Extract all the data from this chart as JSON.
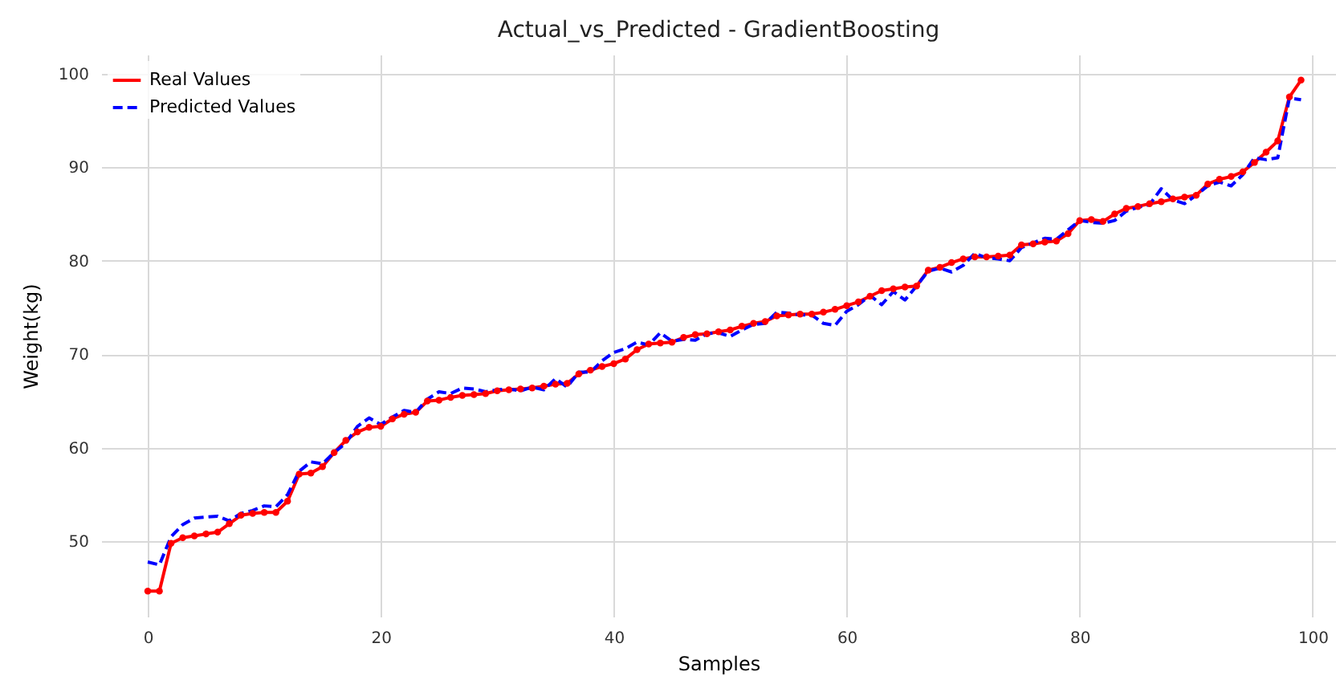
{
  "chart_data": {
    "type": "line",
    "title": "Actual_vs_Predicted - GradientBoosting",
    "xlabel": "Samples",
    "ylabel": "Weight(kg)",
    "x": [
      0,
      1,
      2,
      3,
      4,
      5,
      6,
      7,
      8,
      9,
      10,
      11,
      12,
      13,
      14,
      15,
      16,
      17,
      18,
      19,
      20,
      21,
      22,
      23,
      24,
      25,
      26,
      27,
      28,
      29,
      30,
      31,
      32,
      33,
      34,
      35,
      36,
      37,
      38,
      39,
      40,
      41,
      42,
      43,
      44,
      45,
      46,
      47,
      48,
      49,
      50,
      51,
      52,
      53,
      54,
      55,
      56,
      57,
      58,
      59,
      60,
      61,
      62,
      63,
      64,
      65,
      66,
      67,
      68,
      69,
      70,
      71,
      72,
      73,
      74,
      75,
      76,
      77,
      78,
      79,
      80,
      81,
      82,
      83,
      84,
      85,
      86,
      87,
      88,
      89,
      90,
      91,
      92,
      93,
      94,
      95,
      96,
      97,
      98,
      99
    ],
    "series": [
      {
        "name": "Real Values",
        "color": "#ff0000",
        "marker": "circle",
        "line_style": "solid",
        "values": [
          44.7,
          44.7,
          49.8,
          50.4,
          50.6,
          50.8,
          51,
          51.9,
          52.8,
          53,
          53.1,
          53.1,
          54.3,
          57.2,
          57.3,
          58,
          59.5,
          60.8,
          61.7,
          62.2,
          62.3,
          63.1,
          63.6,
          63.8,
          65,
          65.1,
          65.4,
          65.6,
          65.7,
          65.8,
          66.1,
          66.2,
          66.3,
          66.4,
          66.6,
          66.8,
          66.9,
          67.9,
          68.3,
          68.7,
          69,
          69.5,
          70.5,
          71.1,
          71.2,
          71.3,
          71.8,
          72.1,
          72.2,
          72.4,
          72.6,
          73,
          73.3,
          73.5,
          74.1,
          74.2,
          74.3,
          74.3,
          74.5,
          74.8,
          75.2,
          75.6,
          76.2,
          76.8,
          77,
          77.2,
          77.3,
          79,
          79.3,
          79.8,
          80.2,
          80.4,
          80.4,
          80.5,
          80.6,
          81.7,
          81.8,
          82,
          82.1,
          82.9,
          84.3,
          84.4,
          84.2,
          85,
          85.6,
          85.8,
          86.1,
          86.3,
          86.6,
          86.8,
          87,
          88.2,
          88.7,
          89,
          89.5,
          90.5,
          91.6,
          92.8,
          97.5,
          99.3
        ]
      },
      {
        "name": "Predicted Values",
        "color": "#0000ff",
        "marker": "none",
        "line_style": "dashed",
        "values": [
          47.8,
          47.5,
          50.5,
          51.8,
          52.5,
          52.6,
          52.7,
          52.2,
          53,
          53.3,
          53.8,
          53.7,
          55,
          57.5,
          58.5,
          58.3,
          59.5,
          60.5,
          62.3,
          63.2,
          62.5,
          63.3,
          64,
          63.8,
          65.2,
          66,
          65.8,
          66.4,
          66.3,
          66,
          66.2,
          66.3,
          66.1,
          66.5,
          66.2,
          67.4,
          66.5,
          68.1,
          68.1,
          69.3,
          70.2,
          70.6,
          71.3,
          71,
          72.3,
          71.4,
          71.6,
          71.5,
          72.2,
          72.3,
          71.9,
          72.6,
          73.2,
          73.3,
          74.5,
          74.4,
          74.2,
          74.2,
          73.3,
          73.1,
          74.6,
          75.3,
          76.3,
          75.3,
          76.7,
          75.8,
          77.3,
          78.9,
          79.2,
          78.8,
          79.5,
          80.8,
          80.3,
          80.2,
          80,
          81.4,
          81.9,
          82.4,
          82.3,
          83.3,
          84.3,
          84.1,
          84,
          84.3,
          85.3,
          85.7,
          86,
          87.7,
          86.5,
          86.1,
          87,
          88,
          88.4,
          88,
          89.2,
          91,
          90.8,
          91,
          97.4,
          97.2
        ]
      }
    ],
    "xlim": [
      -4,
      102
    ],
    "ylim": [
      41.97,
      102.03
    ],
    "xticks": [
      0,
      20,
      40,
      60,
      80,
      100
    ],
    "yticks": [
      50,
      60,
      70,
      80,
      90,
      100
    ],
    "grid": true,
    "legend": "top left"
  }
}
